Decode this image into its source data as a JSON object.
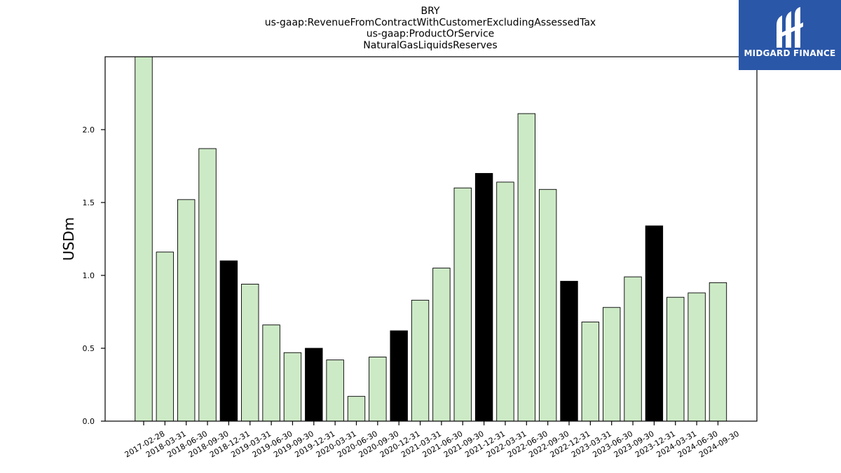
{
  "chart_data": {
    "type": "bar",
    "title_lines": [
      "BRY",
      "us-gaap:RevenueFromContractWithCustomerExcludingAssessedTax",
      "us-gaap:ProductOrService",
      "NaturalGasLiquidsReserves"
    ],
    "ylabel": "USDm",
    "xlabel": "",
    "ylim": [
      0,
      2.5
    ],
    "yticks": [
      "0.0",
      "0.5",
      "1.0",
      "1.5",
      "2.0"
    ],
    "grid": false,
    "categories": [
      "2017-02-28",
      "2018-03-31",
      "2018-06-30",
      "2018-09-30",
      "2018-12-31",
      "2019-03-31",
      "2019-06-30",
      "2019-09-30",
      "2019-12-31",
      "2020-03-31",
      "2020-06-30",
      "2020-09-30",
      "2020-12-31",
      "2021-03-31",
      "2021-06-30",
      "2021-09-30",
      "2021-12-31",
      "2022-03-31",
      "2022-06-30",
      "2022-09-30",
      "2022-12-31",
      "2023-03-31",
      "2023-06-30",
      "2023-09-30",
      "2023-12-31",
      "2024-03-31",
      "2024-06-30",
      "2024-09-30"
    ],
    "values": [
      2.5,
      1.16,
      1.52,
      1.87,
      1.1,
      0.94,
      0.66,
      0.47,
      0.5,
      0.42,
      0.17,
      0.44,
      0.62,
      0.83,
      1.05,
      1.6,
      1.7,
      1.64,
      2.11,
      1.59,
      0.96,
      0.68,
      0.78,
      0.99,
      1.34,
      0.85,
      0.88,
      0.95
    ],
    "highlight": [
      false,
      false,
      false,
      false,
      true,
      false,
      false,
      false,
      true,
      false,
      false,
      false,
      true,
      false,
      false,
      false,
      true,
      false,
      false,
      false,
      true,
      false,
      false,
      false,
      true,
      false,
      false,
      false
    ],
    "colors": {
      "bar": "#cdeac6",
      "highlight": "#000000",
      "edge": "#000000"
    }
  },
  "logo": {
    "text": "MIDGARD FINANCE",
    "background": "#2b57a8"
  }
}
